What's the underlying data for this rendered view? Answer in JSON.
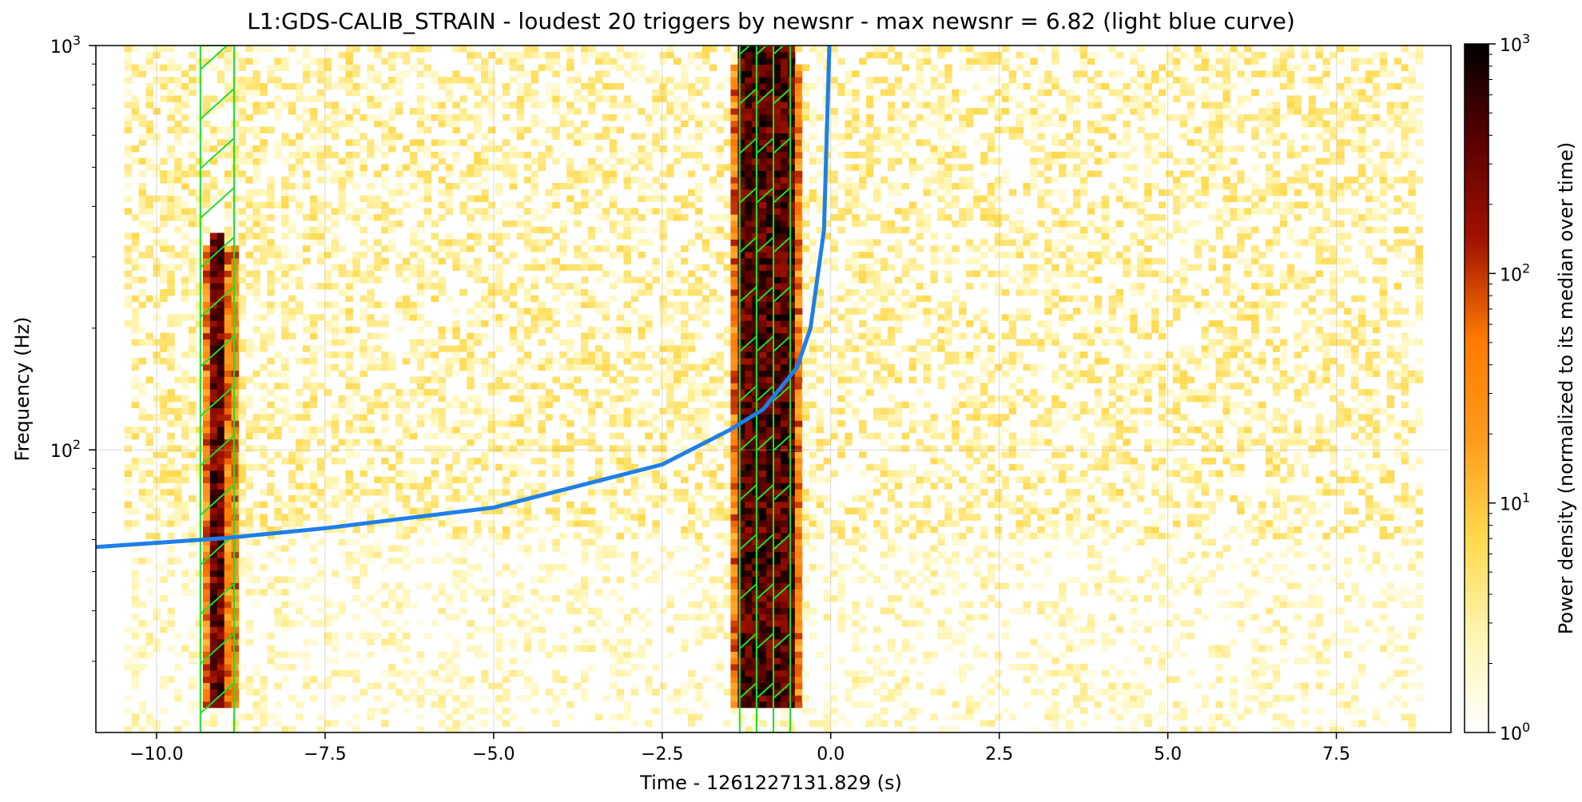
{
  "chart_data": {
    "type": "heatmap",
    "title": "L1:GDS-CALIB_STRAIN - loudest 20 triggers by newsnr - max newsnr = 6.82 (light blue curve)",
    "xlabel": "Time - 1261227131.829 (s)",
    "ylabel": "Frequency (Hz)",
    "xlim": [
      -10.9,
      9.2
    ],
    "ylim": [
      20,
      1000
    ],
    "yscale": "log",
    "grid": true,
    "x_ticks": [
      -10.0,
      -7.5,
      -5.0,
      -2.5,
      0.0,
      2.5,
      5.0,
      7.5
    ],
    "x_tick_labels": [
      "−10.0",
      "−7.5",
      "−5.0",
      "−2.5",
      "0.0",
      "2.5",
      "5.0",
      "7.5"
    ],
    "y_ticks": [
      100,
      1000
    ],
    "y_tick_labels": [
      {
        "base": "10",
        "exp": "2"
      },
      {
        "base": "10",
        "exp": "3"
      }
    ],
    "colorbar": {
      "label": "Power density (normalized to its median over time)",
      "scale": "log",
      "range": [
        1,
        1000
      ],
      "ticks": [
        1,
        10,
        100,
        1000
      ],
      "tick_labels": [
        {
          "base": "10",
          "exp": "0"
        },
        {
          "base": "10",
          "exp": "1"
        },
        {
          "base": "10",
          "exp": "2"
        },
        {
          "base": "10",
          "exp": "3"
        }
      ],
      "colors": [
        "#ffffff",
        "#fff5b0",
        "#ffd84a",
        "#ff9a1e",
        "#ff7a00",
        "#a31200",
        "#5c0000",
        "#000000"
      ]
    },
    "bright_regions": [
      {
        "t_start": -9.2,
        "t_end": -8.95,
        "f_min": 23,
        "f_max": 350,
        "peak": 800
      },
      {
        "t_start": -1.35,
        "t_end": -0.55,
        "f_min": 23,
        "f_max": 1000,
        "peak": 1000
      }
    ],
    "trigger_bands": [
      {
        "t_start": -9.35,
        "t_end": -8.85,
        "color": "#22dd22"
      },
      {
        "t_start": -1.35,
        "t_end": -1.1,
        "color": "#22dd22"
      },
      {
        "t_start": -1.1,
        "t_end": -0.85,
        "color": "#22dd22"
      },
      {
        "t_start": -0.85,
        "t_end": -0.6,
        "color": "#22dd22"
      }
    ],
    "chirp_curve": {
      "color": "#1e7fe8",
      "t_merger": 0.0,
      "points": [
        {
          "t": -10.9,
          "f": 57.5
        },
        {
          "t": -9.0,
          "f": 60.5
        },
        {
          "t": -7.5,
          "f": 64.0
        },
        {
          "t": -5.0,
          "f": 72.0
        },
        {
          "t": -2.5,
          "f": 92.0
        },
        {
          "t": -1.5,
          "f": 112.0
        },
        {
          "t": -1.0,
          "f": 126.0
        },
        {
          "t": -0.5,
          "f": 160.0
        },
        {
          "t": -0.3,
          "f": 200.0
        },
        {
          "t": -0.1,
          "f": 350.0
        },
        {
          "t": -0.02,
          "f": 1000.0
        }
      ]
    }
  }
}
